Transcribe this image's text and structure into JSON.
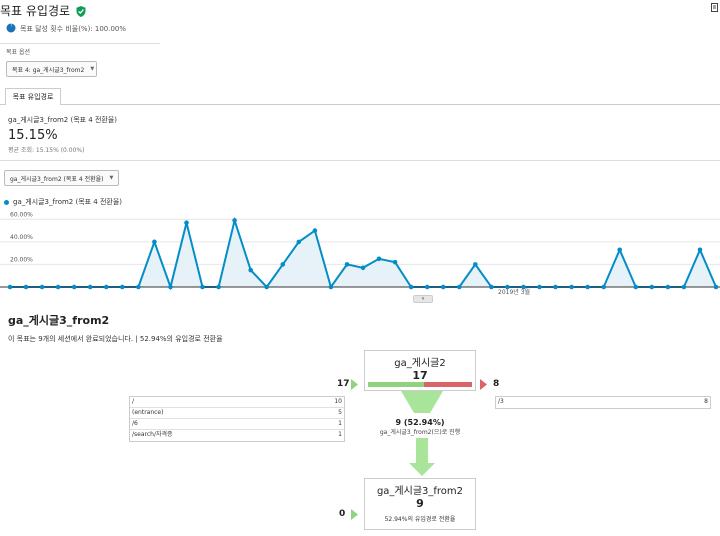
{
  "header": {
    "title": "목표 유입경로",
    "verified_icon": "shield-check-icon",
    "corner_icon": "page-icon"
  },
  "summary_line": "목표 달성 횟수 비율(%): 100.00%",
  "options": {
    "label": "목표 옵션",
    "goal_select": "목표 4: ga_게시글3_from2"
  },
  "tab": {
    "label": "목표 유입경로"
  },
  "metric": {
    "name": "ga_게시글3_from2 (목표 4 전환율)",
    "value": "15.15%",
    "sub": "평균 조회: 15.15% (0.00%)"
  },
  "chart_select": "ga_게시글3_from2 (목표 4 전환율)",
  "chart_data": {
    "type": "area",
    "legend": [
      "ga_게시글3_from2 (목표 4 전환율)"
    ],
    "yticks": [
      "60.00%",
      "40.00%",
      "20.00%"
    ],
    "ylim": [
      0,
      70
    ],
    "xtick_label": "2019년 3월",
    "series": [
      {
        "name": "ga_게시글3_from2 (목표 4 전환율)",
        "values": [
          0,
          0,
          0,
          0,
          0,
          0,
          0,
          0,
          0,
          40,
          0,
          57,
          0,
          0,
          59,
          15,
          0,
          20,
          40,
          50,
          0,
          20,
          17,
          25,
          22,
          0,
          0,
          0,
          0,
          20,
          0,
          0,
          0,
          0,
          0,
          0,
          0,
          0,
          33,
          0,
          0,
          0,
          0,
          33,
          0
        ]
      }
    ],
    "color": "#058dc7",
    "fill": "#e6f2f8"
  },
  "funnel": {
    "heading": "ga_게시글3_from2",
    "summary": "이 목표는 9개의 세션에서 완료되었습니다. | 52.94%의 유입경로 전환율",
    "step1": {
      "name": "ga_게시글2",
      "count": "17",
      "entries": "17",
      "exits": "8",
      "sources": [
        {
          "path": "/",
          "count": "10"
        },
        {
          "path": "(entrance)",
          "count": "5"
        },
        {
          "path": "/6",
          "count": "1"
        },
        {
          "path": "/search/자격증",
          "count": "1"
        }
      ],
      "exit_pages": [
        {
          "path": "/3",
          "count": "8"
        }
      ]
    },
    "flow": {
      "count_text": "9 (52.94%)",
      "label": "ga_게시글3_from2(으)로 진행"
    },
    "step2": {
      "name": "ga_게시글3_from2",
      "count": "9",
      "entries": "0",
      "sub": "52.94%의 유입경로 전환율"
    },
    "colors": {
      "green": "#8fd27f",
      "red": "#d9646a",
      "flow": "#a8e59a"
    }
  }
}
